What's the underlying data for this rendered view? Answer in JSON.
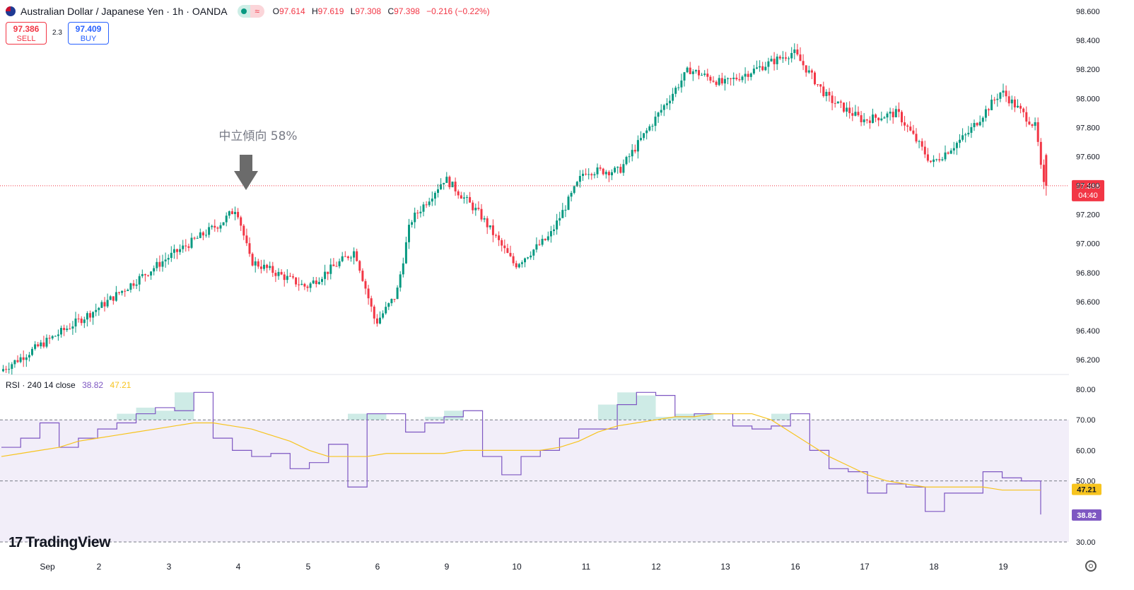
{
  "header": {
    "symbol": "Australian Dollar / Japanese Yen · 1h · OANDA",
    "o_label": "O",
    "o_value": "97.614",
    "h_label": "H",
    "h_value": "97.619",
    "l_label": "L",
    "l_value": "97.308",
    "c_label": "C",
    "c_value": "97.398",
    "change": "−0.216 (−0.22%)"
  },
  "trade": {
    "sell_price": "97.386",
    "sell_label": "SELL",
    "spread": "2.3",
    "buy_price": "97.409",
    "buy_label": "BUY"
  },
  "annotation": {
    "text": "中立傾向 58%"
  },
  "rsi_header": {
    "label": "RSI · 240 14 close",
    "rsi_value": "38.82",
    "ma_value": "47.21"
  },
  "logo": {
    "mark": "17",
    "text": "TradingView"
  },
  "colors": {
    "up": "#089981",
    "down": "#f23645",
    "rsi": "#7e57c2",
    "rsi_ma": "#f7c41f",
    "band": "#7e57c2"
  },
  "chart_data": [
    {
      "type": "candlestick",
      "name": "AUD/JPY 1h",
      "price_axis_ticks": [
        "98.600",
        "98.400",
        "98.200",
        "98.000",
        "97.800",
        "97.600",
        "97.400",
        "97.200",
        "97.000",
        "96.800",
        "96.600",
        "96.400",
        "96.200"
      ],
      "x_axis_labels": [
        "Sep",
        "2",
        "3",
        "4",
        "5",
        "6",
        "9",
        "10",
        "11",
        "12",
        "13",
        "16",
        "17",
        "18",
        "19"
      ],
      "ylim": [
        96.12,
        98.68
      ],
      "last_price": "97.398",
      "countdown": "04:40",
      "approx_close_path": [
        {
          "x": "Sep",
          "y": 96.12
        },
        {
          "x": "2",
          "y": 96.55
        },
        {
          "x": "3",
          "y": 96.9
        },
        {
          "x": "3.8",
          "y": 97.15
        },
        {
          "x": "4",
          "y": 97.25
        },
        {
          "x": "4.2",
          "y": 96.88
        },
        {
          "x": "5",
          "y": 96.7
        },
        {
          "x": "5.7",
          "y": 96.95
        },
        {
          "x": "6",
          "y": 96.45
        },
        {
          "x": "6.3",
          "y": 96.65
        },
        {
          "x": "6.5",
          "y": 97.15
        },
        {
          "x": "9",
          "y": 97.45
        },
        {
          "x": "9.5",
          "y": 97.2
        },
        {
          "x": "10",
          "y": 96.85
        },
        {
          "x": "10.5",
          "y": 97.05
        },
        {
          "x": "11",
          "y": 97.5
        },
        {
          "x": "11.5",
          "y": 97.5
        },
        {
          "x": "12",
          "y": 97.85
        },
        {
          "x": "12.5",
          "y": 98.2
        },
        {
          "x": "13",
          "y": 98.1
        },
        {
          "x": "16",
          "y": 98.32
        },
        {
          "x": "16.5",
          "y": 98.0
        },
        {
          "x": "17",
          "y": 97.85
        },
        {
          "x": "17.5",
          "y": 97.9
        },
        {
          "x": "18",
          "y": 97.55
        },
        {
          "x": "18.5",
          "y": 97.75
        },
        {
          "x": "19",
          "y": 98.05
        },
        {
          "x": "19.5",
          "y": 97.8
        },
        {
          "x": "19.6",
          "y": 97.398
        }
      ]
    },
    {
      "type": "line",
      "name": "RSI",
      "y_axis_ticks": [
        "80.00",
        "70.00",
        "60.00",
        "50.00",
        "30.00"
      ],
      "bands": [
        70,
        50,
        30
      ],
      "ylim": [
        28,
        82
      ],
      "series": [
        {
          "name": "RSI",
          "values": [
            61,
            64,
            69,
            61,
            64,
            67,
            69,
            72,
            74,
            73,
            79,
            64,
            60,
            58,
            59,
            54,
            56,
            62,
            48,
            72,
            72,
            66,
            69,
            71,
            73,
            58,
            52,
            58,
            60,
            64,
            67,
            67,
            75,
            79,
            78,
            71,
            72,
            72,
            68,
            67,
            68,
            72,
            60,
            54,
            53,
            46,
            49,
            48,
            40,
            46,
            46,
            53,
            51,
            50,
            39
          ]
        },
        {
          "name": "MA",
          "values": [
            58,
            59,
            60,
            61,
            63,
            64,
            65,
            66,
            67,
            68,
            69,
            69,
            68,
            67,
            65,
            63,
            60,
            58,
            58,
            58,
            59,
            59,
            59,
            59,
            60,
            60,
            60,
            60,
            60,
            61,
            63,
            66,
            68,
            69,
            70,
            71,
            71,
            72,
            72,
            72,
            70,
            66,
            62,
            58,
            55,
            52,
            50,
            49,
            48,
            48,
            48,
            48,
            47,
            47,
            47
          ]
        }
      ],
      "last_values": {
        "rsi": "38.82",
        "ma": "47.21"
      }
    }
  ]
}
